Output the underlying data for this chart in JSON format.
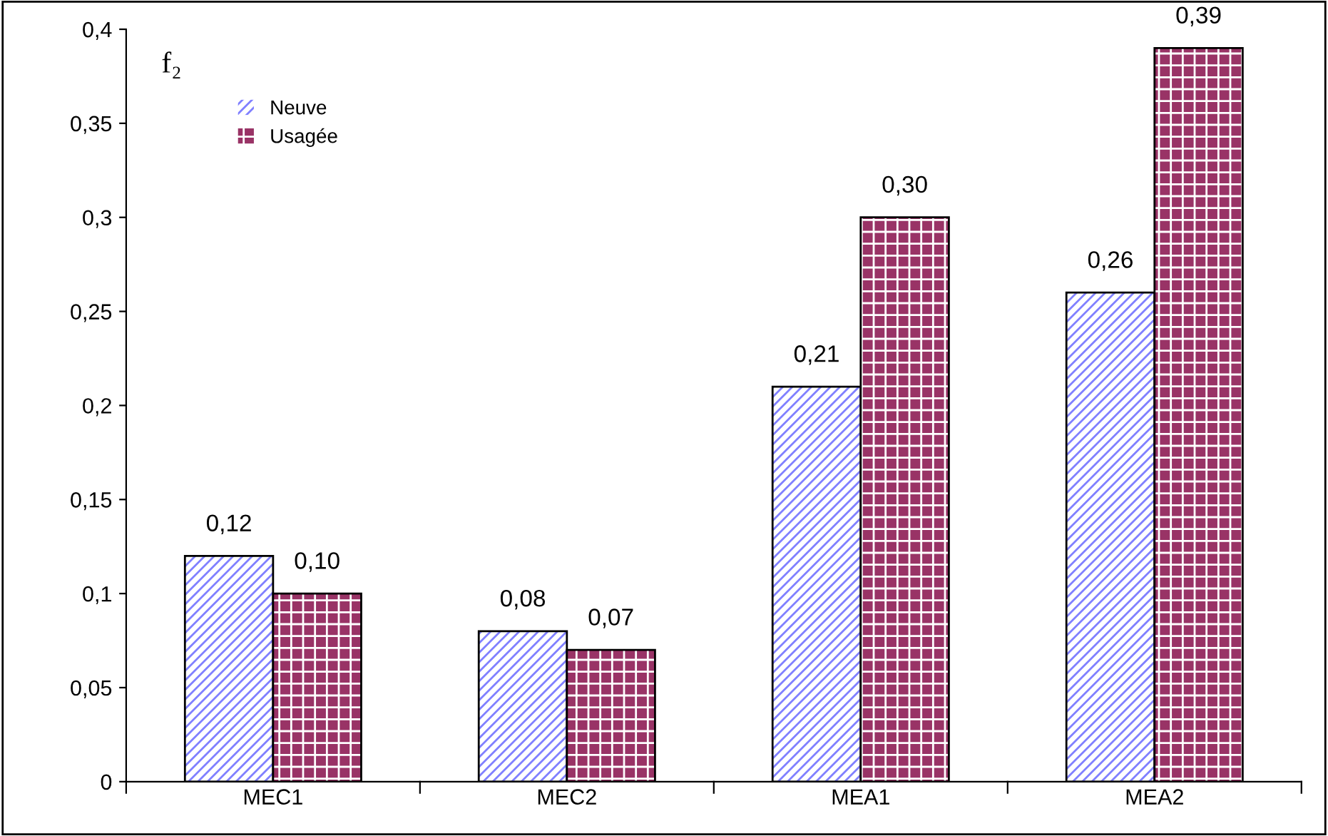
{
  "chart_data": {
    "type": "bar",
    "ylabel": "f₂",
    "categories": [
      "MEC1",
      "MEC2",
      "MEA1",
      "MEA2"
    ],
    "series": [
      {
        "name": "Neuve",
        "color": "#8080ff",
        "values": [
          0.12,
          0.08,
          0.21,
          0.26
        ],
        "value_labels": [
          "0,12",
          "0,08",
          "0,21",
          "0,26"
        ]
      },
      {
        "name": "Usagée",
        "color": "#993366",
        "values": [
          0.1,
          0.07,
          0.3,
          0.39
        ],
        "value_labels": [
          "0,10",
          "0,07",
          "0,30",
          "0,39"
        ]
      }
    ],
    "ylim": [
      0,
      0.4
    ],
    "yticks": [
      {
        "value": 0,
        "label": "0"
      },
      {
        "value": 0.05,
        "label": "0,05"
      },
      {
        "value": 0.1,
        "label": "0,1"
      },
      {
        "value": 0.15,
        "label": "0,15"
      },
      {
        "value": 0.2,
        "label": "0,2"
      },
      {
        "value": 0.25,
        "label": "0,25"
      },
      {
        "value": 0.3,
        "label": "0,3"
      },
      {
        "value": 0.35,
        "label": "0,35"
      },
      {
        "value": 0.4,
        "label": "0,4"
      }
    ],
    "grid": false,
    "legend": "top left"
  }
}
